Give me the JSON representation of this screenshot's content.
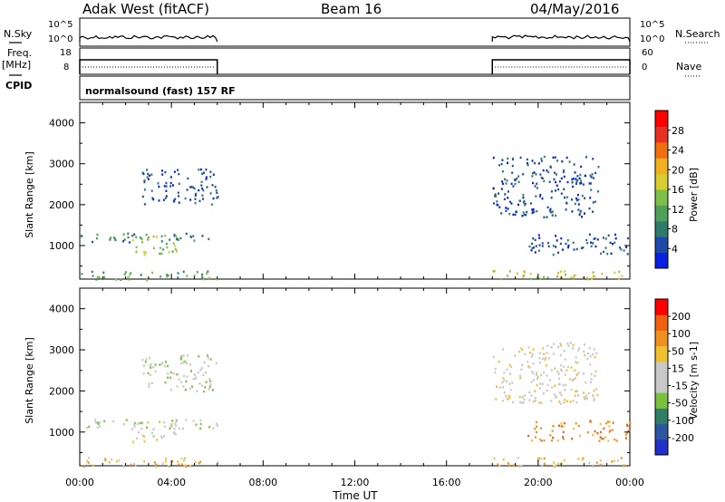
{
  "header": {
    "title": "Adak West (fitACF)",
    "beam": "Beam 16",
    "date": "04/May/2016"
  },
  "left_labels": {
    "nsky": "N.Sky",
    "freq": "Freq.",
    "mhz": "[MHz]",
    "cpid": "CPID"
  },
  "right_labels": {
    "nsearch": "N.Search",
    "nave": "Nave"
  },
  "axis_ticks": {
    "noise_left": [
      "10^5",
      "10^0"
    ],
    "noise_right": [
      "10^5",
      "10^0"
    ],
    "freq_left": [
      "18",
      "8"
    ],
    "nave_right": [
      "60",
      "0"
    ]
  },
  "cpid_text": "normalsound (fast) 157 RF",
  "chart_data": [
    {
      "type": "heatmap",
      "panel": "power",
      "ylabel": "Slant Range [km]",
      "yticks": [
        "4000",
        "3000",
        "2000",
        "1000"
      ],
      "ylim": [
        180,
        4500
      ],
      "colorbar_label": "Power [dB]",
      "colorbar_ticks": [
        "28",
        "24",
        "20",
        "16",
        "12",
        "8",
        "4"
      ],
      "colors": [
        "#0a20e0",
        "#1f4aa8",
        "#2e7b6c",
        "#4fa058",
        "#7cc04a",
        "#d8cc30",
        "#f0b020",
        "#f07010",
        "#e83020",
        "#ff0000"
      ],
      "echo_regions": [
        {
          "t0": 0.0,
          "t1": 6.0,
          "r0": 1100,
          "r1": 1320,
          "level": 2
        },
        {
          "t0": 2.2,
          "t1": 4.2,
          "r0": 780,
          "r1": 1280,
          "level": 4
        },
        {
          "t0": 2.7,
          "t1": 6.0,
          "r0": 2000,
          "r1": 2900,
          "level": 1
        },
        {
          "t0": 0.0,
          "t1": 6.0,
          "r0": 180,
          "r1": 400,
          "level": 3
        },
        {
          "t0": 18.0,
          "t1": 24.0,
          "r0": 180,
          "r1": 400,
          "level": 5
        },
        {
          "t0": 19.5,
          "t1": 24.0,
          "r0": 800,
          "r1": 1300,
          "level": 1
        },
        {
          "t0": 18.0,
          "t1": 22.6,
          "r0": 1700,
          "r1": 3200,
          "level": 1
        }
      ]
    },
    {
      "type": "heatmap",
      "panel": "velocity",
      "ylabel": "Slant Range [km]",
      "yticks": [
        "4000",
        "3000",
        "2000",
        "1000"
      ],
      "ylim": [
        180,
        4500
      ],
      "colorbar_label": "Velocity [m s-1]",
      "colorbar_ticks": [
        "200",
        "100",
        "50",
        "15",
        "-15",
        "-50",
        "-100",
        "-200"
      ],
      "colors": [
        "#2030c8",
        "#2c56a0",
        "#2f7f66",
        "#7cc040",
        "#c8c8c8",
        "#c8c8c8",
        "#f0c030",
        "#f09020",
        "#f06010",
        "#ff0000"
      ],
      "echo_regions": [
        {
          "t0": 0.0,
          "t1": 6.0,
          "r0": 1100,
          "r1": 1320,
          "level": 4
        },
        {
          "t0": 2.2,
          "t1": 4.2,
          "r0": 780,
          "r1": 1280,
          "level": 5
        },
        {
          "t0": 2.7,
          "t1": 6.0,
          "r0": 2000,
          "r1": 2900,
          "level": 4
        },
        {
          "t0": 0.0,
          "t1": 6.0,
          "r0": 180,
          "r1": 400,
          "level": 6
        },
        {
          "t0": 18.0,
          "t1": 24.0,
          "r0": 180,
          "r1": 400,
          "level": 6
        },
        {
          "t0": 19.5,
          "t1": 24.0,
          "r0": 800,
          "r1": 1300,
          "level": 7
        },
        {
          "t0": 18.0,
          "t1": 22.6,
          "r0": 1700,
          "r1": 3200,
          "level": 5
        }
      ]
    }
  ],
  "data_intervals": [
    [
      0,
      6
    ],
    [
      18,
      24
    ]
  ],
  "xaxis": {
    "label": "Time UT",
    "ticks": [
      "00:00",
      "04:00",
      "08:00",
      "12:00",
      "16:00",
      "20:00",
      "00:00"
    ],
    "range_hours": [
      0,
      24
    ]
  }
}
